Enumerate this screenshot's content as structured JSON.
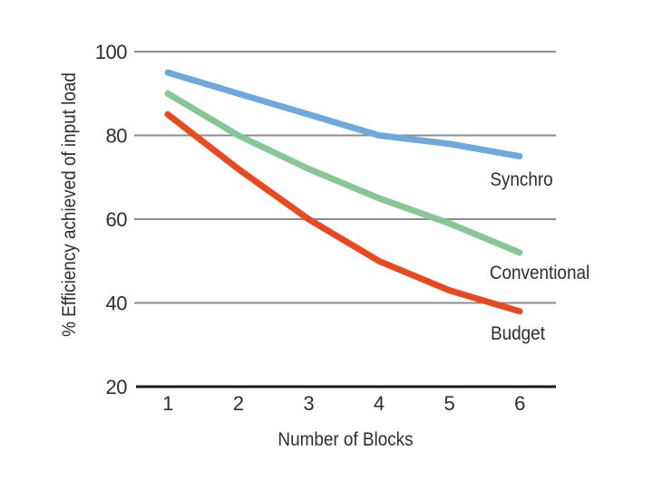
{
  "canvas": {
    "background": "#ffffff",
    "text_color": "#2e2e2e"
  },
  "chart_data": {
    "type": "line",
    "title": "",
    "xlabel": "Number of Blocks",
    "ylabel": "% Efficiency achieved of input load",
    "x": [
      1,
      2,
      3,
      4,
      5,
      6
    ],
    "xticks": [
      1,
      2,
      3,
      4,
      5,
      6
    ],
    "yticks": [
      20,
      40,
      60,
      80,
      100
    ],
    "ylim": [
      20,
      100
    ],
    "grid": "horizontal",
    "gridline_color": "#8c8c8c",
    "axis_color": "#1a1a1a",
    "legend_position": "inline-labels-right",
    "series": [
      {
        "name": "Synchro",
        "color": "#6FA8DC",
        "values": [
          95,
          90,
          85,
          80,
          78,
          75
        ]
      },
      {
        "name": "Conventional",
        "color": "#87C795",
        "values": [
          90,
          80,
          72,
          65,
          59,
          52
        ]
      },
      {
        "name": "Budget",
        "color": "#E8491F",
        "values": [
          85,
          72,
          60,
          50,
          43,
          38
        ]
      }
    ]
  }
}
